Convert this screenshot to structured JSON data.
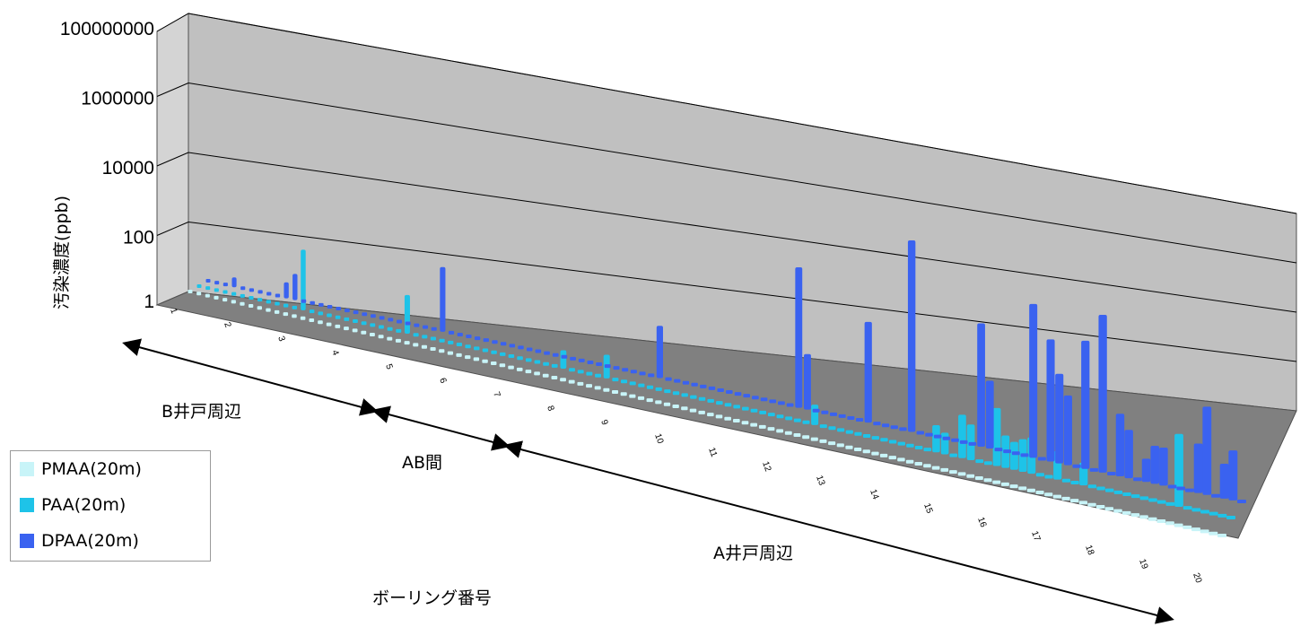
{
  "chart_data": {
    "type": "bar",
    "ylabel": "汚染濃度(ppb)",
    "xlabel": "ボーリング番号",
    "y_scale": "log",
    "ylim": [
      1,
      100000000
    ],
    "y_ticks": [
      "1",
      "100",
      "10000",
      "1000000",
      "100000000"
    ],
    "grid": true,
    "legend_position": "bottom-left",
    "series": [
      {
        "name": "PMAA(20m)",
        "color": "#c8f4f8"
      },
      {
        "name": "PAA(20m)",
        "color": "#1ec3e8"
      },
      {
        "name": "DPAA(20m)",
        "color": "#3a62f0"
      }
    ],
    "regions": [
      {
        "label": "B井戸周辺"
      },
      {
        "label": "AB間"
      },
      {
        "label": "A井戸周辺"
      }
    ],
    "visible_category_labels": [
      "1",
      "2",
      "3",
      "4",
      "5",
      "6",
      "7",
      "8",
      "9",
      "10",
      "11",
      "12",
      "13",
      "14",
      "15",
      "16",
      "17",
      "18",
      "19",
      "20"
    ],
    "values_note_empty": "",
    "bars_paa": [
      {
        "index": 12,
        "value": 60
      },
      {
        "index": 24,
        "value": 12
      },
      {
        "index": 42,
        "value": 3
      },
      {
        "index": 47,
        "value": 4
      },
      {
        "index": 71,
        "value": 3
      },
      {
        "index": 85,
        "value": 4
      },
      {
        "index": 86,
        "value": 3
      },
      {
        "index": 88,
        "value": 9
      },
      {
        "index": 89,
        "value": 6
      },
      {
        "index": 92,
        "value": 18
      },
      {
        "index": 93,
        "value": 5
      },
      {
        "index": 94,
        "value": 4
      },
      {
        "index": 95,
        "value": 5
      },
      {
        "index": 96,
        "value": 6
      },
      {
        "index": 99,
        "value": 4
      },
      {
        "index": 102,
        "value": 3
      },
      {
        "index": 113,
        "value": 30
      }
    ],
    "bars_dpaa": [
      {
        "index": 3,
        "value": 2
      },
      {
        "index": 9,
        "value": 3
      },
      {
        "index": 10,
        "value": 6
      },
      {
        "index": 27,
        "value": 60
      },
      {
        "index": 52,
        "value": 20
      },
      {
        "index": 68,
        "value": 2000
      },
      {
        "index": 69,
        "value": 20
      },
      {
        "index": 76,
        "value": 200
      },
      {
        "index": 81,
        "value": 20000
      },
      {
        "index": 89,
        "value": 500
      },
      {
        "index": 90,
        "value": 30
      },
      {
        "index": 95,
        "value": 2000
      },
      {
        "index": 97,
        "value": 400
      },
      {
        "index": 98,
        "value": 80
      },
      {
        "index": 99,
        "value": 30
      },
      {
        "index": 101,
        "value": 500
      },
      {
        "index": 103,
        "value": 2000
      },
      {
        "index": 105,
        "value": 20
      },
      {
        "index": 106,
        "value": 10
      },
      {
        "index": 108,
        "value": 3
      },
      {
        "index": 109,
        "value": 6
      },
      {
        "index": 110,
        "value": 6
      },
      {
        "index": 114,
        "value": 10
      },
      {
        "index": 115,
        "value": 60
      },
      {
        "index": 117,
        "value": 5
      },
      {
        "index": 118,
        "value": 10
      }
    ],
    "n_categories": 120
  }
}
